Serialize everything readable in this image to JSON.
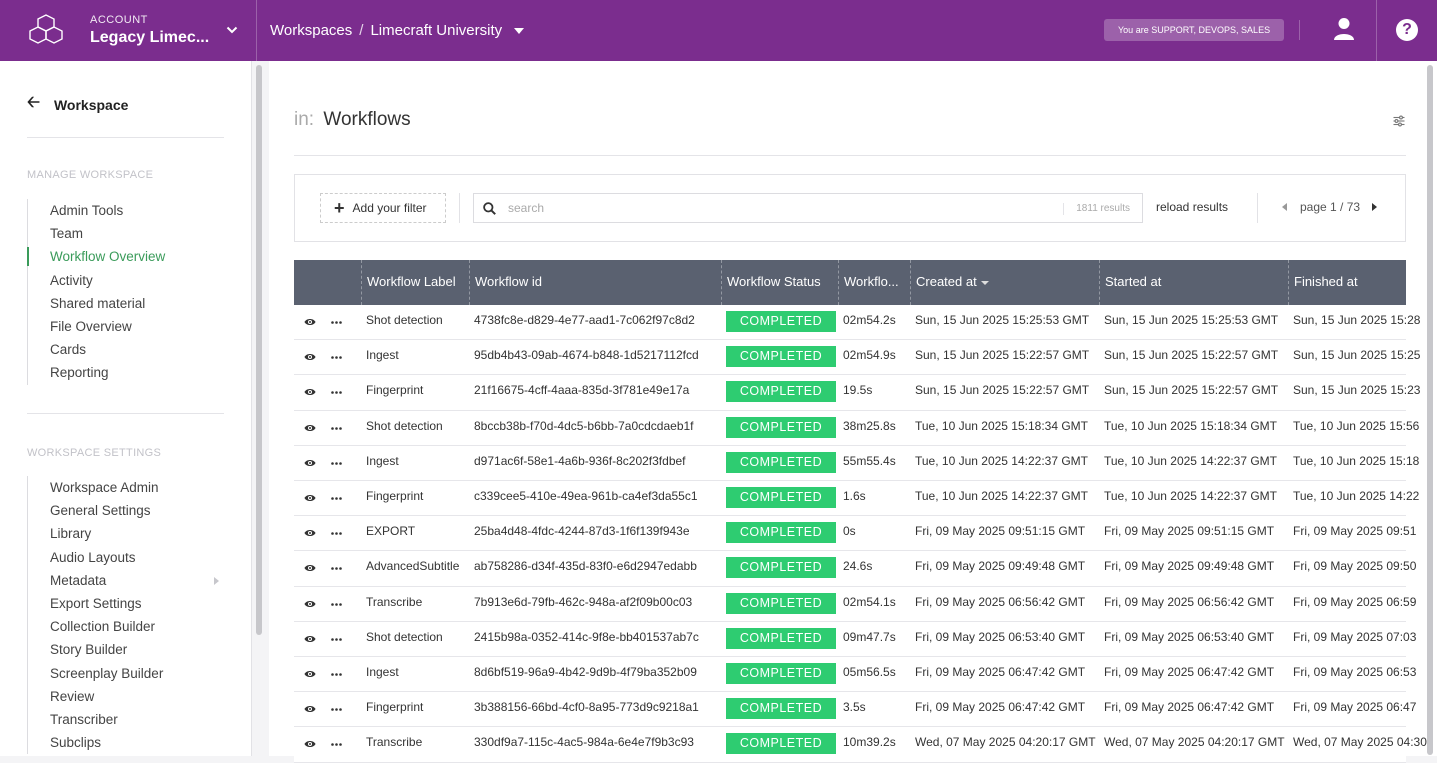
{
  "topbar": {
    "account_label": "ACCOUNT",
    "account_name": "Legacy Limec...",
    "breadcrumb": [
      "Workspaces",
      "Limecraft University"
    ],
    "breadcrumb_separator": "/",
    "role_badge": "You are SUPPORT, DEVOPS, SALES",
    "help_label": "?"
  },
  "sidebar": {
    "back_label": "Workspace",
    "section_manage": "MANAGE WORKSPACE",
    "manage_items": [
      "Admin Tools",
      "Team",
      "Workflow Overview",
      "Activity",
      "Shared material",
      "File Overview",
      "Cards",
      "Reporting"
    ],
    "active_item": "Workflow Overview",
    "section_settings": "WORKSPACE SETTINGS",
    "settings_items": [
      "Workspace Admin",
      "General Settings",
      "Library",
      "Audio Layouts",
      "Metadata",
      "Export Settings",
      "Collection Builder",
      "Story Builder",
      "Screenplay Builder",
      "Review",
      "Transcriber",
      "Subclips"
    ]
  },
  "page": {
    "title_prefix": "in:",
    "title": "Workflows"
  },
  "filterbar": {
    "add_filter_label": "Add your filter",
    "search_placeholder": "search",
    "results_count": "1811 results",
    "reload_label": "reload results",
    "page_label": "page 1 / 73"
  },
  "table": {
    "columns": [
      "Workflow Label",
      "Workflow id",
      "Workflow Status",
      "Workflo...",
      "Created at",
      "Started at",
      "Finished at"
    ],
    "rows": [
      {
        "label": "Shot detection",
        "id": "4738fc8e-d829-4e77-aad1-7c062f97c8d2",
        "status": "COMPLETED",
        "duration": "02m54.2s",
        "created": "Sun, 15 Jun 2025 15:25:53 GMT",
        "started": "Sun, 15 Jun 2025 15:25:53 GMT",
        "finished": "Sun, 15 Jun 2025 15:28"
      },
      {
        "label": "Ingest",
        "id": "95db4b43-09ab-4674-b848-1d5217112fcd",
        "status": "COMPLETED",
        "duration": "02m54.9s",
        "created": "Sun, 15 Jun 2025 15:22:57 GMT",
        "started": "Sun, 15 Jun 2025 15:22:57 GMT",
        "finished": "Sun, 15 Jun 2025 15:25"
      },
      {
        "label": "Fingerprint",
        "id": "21f16675-4cff-4aaa-835d-3f781e49e17a",
        "status": "COMPLETED",
        "duration": "19.5s",
        "created": "Sun, 15 Jun 2025 15:22:57 GMT",
        "started": "Sun, 15 Jun 2025 15:22:57 GMT",
        "finished": "Sun, 15 Jun 2025 15:23"
      },
      {
        "label": "Shot detection",
        "id": "8bccb38b-f70d-4dc5-b6bb-7a0cdcdaeb1f",
        "status": "COMPLETED",
        "duration": "38m25.8s",
        "created": "Tue, 10 Jun 2025 15:18:34 GMT",
        "started": "Tue, 10 Jun 2025 15:18:34 GMT",
        "finished": "Tue, 10 Jun 2025 15:56"
      },
      {
        "label": "Ingest",
        "id": "d971ac6f-58e1-4a6b-936f-8c202f3fdbef",
        "status": "COMPLETED",
        "duration": "55m55.4s",
        "created": "Tue, 10 Jun 2025 14:22:37 GMT",
        "started": "Tue, 10 Jun 2025 14:22:37 GMT",
        "finished": "Tue, 10 Jun 2025 15:18"
      },
      {
        "label": "Fingerprint",
        "id": "c339cee5-410e-49ea-961b-ca4ef3da55c1",
        "status": "COMPLETED",
        "duration": "1.6s",
        "created": "Tue, 10 Jun 2025 14:22:37 GMT",
        "started": "Tue, 10 Jun 2025 14:22:37 GMT",
        "finished": "Tue, 10 Jun 2025 14:22"
      },
      {
        "label": "EXPORT",
        "id": "25ba4d48-4fdc-4244-87d3-1f6f139f943e",
        "status": "COMPLETED",
        "duration": "0s",
        "created": "Fri, 09 May 2025 09:51:15 GMT",
        "started": "Fri, 09 May 2025 09:51:15 GMT",
        "finished": "Fri, 09 May 2025 09:51"
      },
      {
        "label": "AdvancedSubtitle",
        "id": "ab758286-d34f-435d-83f0-e6d2947edabb",
        "status": "COMPLETED",
        "duration": "24.6s",
        "created": "Fri, 09 May 2025 09:49:48 GMT",
        "started": "Fri, 09 May 2025 09:49:48 GMT",
        "finished": "Fri, 09 May 2025 09:50"
      },
      {
        "label": "Transcribe",
        "id": "7b913e6d-79fb-462c-948a-af2f09b00c03",
        "status": "COMPLETED",
        "duration": "02m54.1s",
        "created": "Fri, 09 May 2025 06:56:42 GMT",
        "started": "Fri, 09 May 2025 06:56:42 GMT",
        "finished": "Fri, 09 May 2025 06:59"
      },
      {
        "label": "Shot detection",
        "id": "2415b98a-0352-414c-9f8e-bb401537ab7c",
        "status": "COMPLETED",
        "duration": "09m47.7s",
        "created": "Fri, 09 May 2025 06:53:40 GMT",
        "started": "Fri, 09 May 2025 06:53:40 GMT",
        "finished": "Fri, 09 May 2025 07:03"
      },
      {
        "label": "Ingest",
        "id": "8d6bf519-96a9-4b42-9d9b-4f79ba352b09",
        "status": "COMPLETED",
        "duration": "05m56.5s",
        "created": "Fri, 09 May 2025 06:47:42 GMT",
        "started": "Fri, 09 May 2025 06:47:42 GMT",
        "finished": "Fri, 09 May 2025 06:53"
      },
      {
        "label": "Fingerprint",
        "id": "3b388156-66bd-4cf0-8a95-773d9c9218a1",
        "status": "COMPLETED",
        "duration": "3.5s",
        "created": "Fri, 09 May 2025 06:47:42 GMT",
        "started": "Fri, 09 May 2025 06:47:42 GMT",
        "finished": "Fri, 09 May 2025 06:47"
      },
      {
        "label": "Transcribe",
        "id": "330df9a7-115c-4ac5-984a-6e4e7f9b3c93",
        "status": "COMPLETED",
        "duration": "10m39.2s",
        "created": "Wed, 07 May 2025 04:20:17 GMT",
        "started": "Wed, 07 May 2025 04:20:17 GMT",
        "finished": "Wed, 07 May 2025 04:30"
      }
    ]
  },
  "colors": {
    "brand": "#7b2d8e",
    "status_completed": "#2ecc71",
    "table_header": "#5a6170",
    "active_nav": "#3a9b5a"
  },
  "icons": [
    "logo-icon",
    "chevron-down-icon",
    "user-icon",
    "help-icon",
    "arrow-left-icon",
    "chevron-right-icon",
    "sliders-icon",
    "plus-icon",
    "search-icon",
    "eye-icon",
    "more-icon"
  ]
}
